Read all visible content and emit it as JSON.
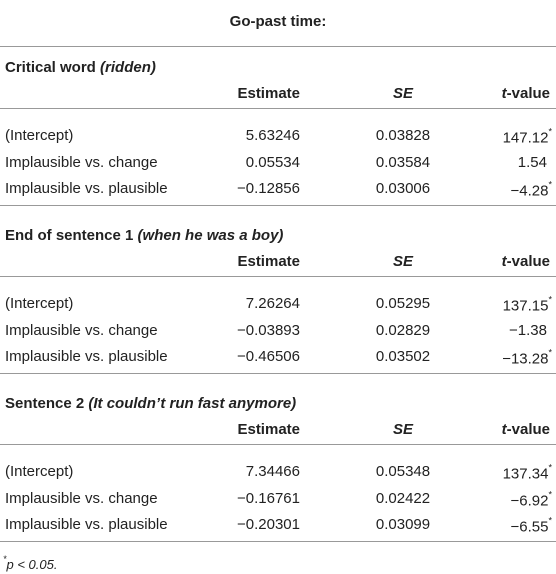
{
  "title": "Go-past time:",
  "sections": [
    {
      "title": "Critical word",
      "subtitle": "(ridden)",
      "columns": [
        "Estimate",
        "SE",
        "t-value"
      ],
      "rows": [
        {
          "label": "(Intercept)",
          "estimate": "5.63246",
          "se": "0.03828",
          "t": "147.12",
          "mark": "*"
        },
        {
          "label": "Implausible vs. change",
          "estimate": "0.05534",
          "se": "0.03584",
          "t": "1.54"
        },
        {
          "label": "Implausible vs. plausible",
          "estimate": "−0.12856",
          "se": "0.03006",
          "t": "−4.28",
          "mark": "*"
        }
      ]
    },
    {
      "title": "End of sentence 1",
      "subtitle": "(when he was a boy)",
      "columns": [
        "Estimate",
        "SE",
        "t-value"
      ],
      "rows": [
        {
          "label": "(Intercept)",
          "estimate": "7.26264",
          "se": "0.05295",
          "t": "137.15",
          "mark": "*"
        },
        {
          "label": "Implausible vs. change",
          "estimate": "−0.03893",
          "se": "0.02829",
          "t": "−1.38"
        },
        {
          "label": "Implausible vs. plausible",
          "estimate": "−0.46506",
          "se": "0.03502",
          "t": "−13.28",
          "mark": "*"
        }
      ]
    },
    {
      "title": "Sentence 2",
      "subtitle": "(It couldn’t run fast anymore)",
      "columns": [
        "Estimate",
        "SE",
        "t-value"
      ],
      "rows": [
        {
          "label": "(Intercept)",
          "estimate": "7.34466",
          "se": "0.05348",
          "t": "137.34",
          "mark": "*"
        },
        {
          "label": "Implausible vs. change",
          "estimate": "−0.16761",
          "se": "0.02422",
          "t": "−6.92",
          "mark": "*"
        },
        {
          "label": "Implausible vs. plausible",
          "estimate": "−0.20301",
          "se": "0.03099",
          "t": "−6.55",
          "mark": "*"
        }
      ]
    }
  ],
  "footnote": {
    "mark": "*",
    "text": "p < 0.05."
  }
}
